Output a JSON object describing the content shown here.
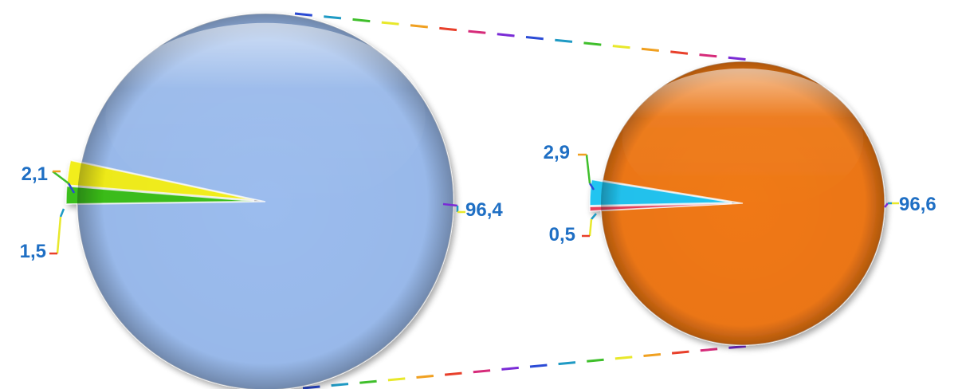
{
  "chart_data": [
    {
      "type": "pie",
      "slices": [
        {
          "value": 96.4,
          "label": "96,4",
          "color": "#9bbcee"
        },
        {
          "value": 2.1,
          "label": "2,1",
          "color": "#f2ee1a"
        },
        {
          "value": 1.5,
          "label": "1,5",
          "color": "#3bbf1a"
        }
      ]
    },
    {
      "type": "pie",
      "slices": [
        {
          "value": 96.6,
          "label": "96,6",
          "color": "#f07815"
        },
        {
          "value": 2.9,
          "label": "2,9",
          "color": "#22c4f0"
        },
        {
          "value": 0.5,
          "label": "0,5",
          "color": "#e8405a"
        }
      ]
    }
  ],
  "label_color": "#1f6fc4",
  "connector_colors": [
    "#7a2bd6",
    "#2b4bd6",
    "#1f9ac4",
    "#3fbf2b",
    "#e8e82b",
    "#f0a020",
    "#e8402b",
    "#d62b7a"
  ]
}
